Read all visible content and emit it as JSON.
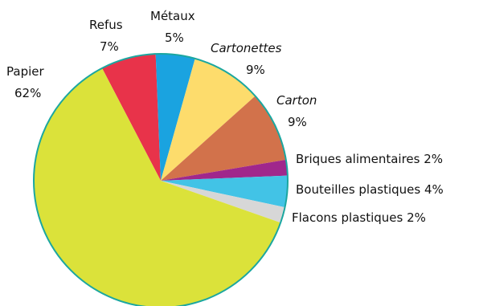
{
  "chart_data": {
    "type": "pie",
    "title": "",
    "slices": [
      {
        "name": "Papier",
        "value": 62,
        "label": "62%",
        "color": "#dbe23a"
      },
      {
        "name": "Refus",
        "value": 7,
        "label": "7%",
        "color": "#e8334a"
      },
      {
        "name": "Métaux",
        "value": 5,
        "label": "5%",
        "color": "#1aa3e0"
      },
      {
        "name": "Cartonettes",
        "value": 9,
        "label": "9%",
        "color": "#fddc6c"
      },
      {
        "name": "Carton",
        "value": 9,
        "label": "9%",
        "color": "#d2724b"
      },
      {
        "name": "Briques alimentaires",
        "value": 2,
        "label": "2%",
        "color": "#a0278c"
      },
      {
        "name": "Bouteilles plastiques",
        "value": 4,
        "label": "4%",
        "color": "#42c3e6"
      },
      {
        "name": "Flacons plastiques",
        "value": 2,
        "label": "2%",
        "color": "#d7d7d7"
      }
    ],
    "outline_color": "#1ba7a0",
    "legend": "none (labels placed next to slices)"
  }
}
